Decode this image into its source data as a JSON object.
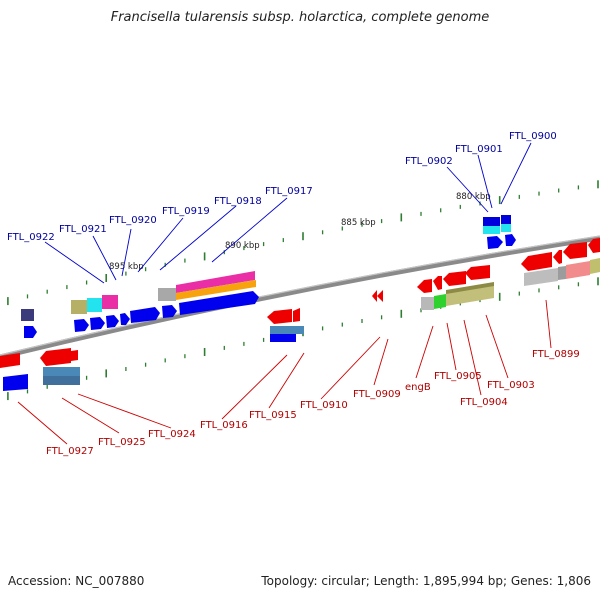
{
  "title": "Francisella tularensis subsp. holarctica, complete genome",
  "footer": {
    "accession": "Accession: NC_007880",
    "stats": "Topology: circular; Length: 1,895,994 bp; Genes: 1,806"
  },
  "scale_labels": [
    "880 kbp",
    "885 kbp",
    "890 kbp",
    "895 kbp"
  ],
  "gene_labels_forward": [
    "FTL_0922",
    "FTL_0921",
    "FTL_0920",
    "FTL_0919",
    "FTL_0918",
    "FTL_0917",
    "FTL_0902",
    "FTL_0901",
    "FTL_0900"
  ],
  "gene_labels_reverse": [
    "FTL_0927",
    "FTL_0925",
    "FTL_0924",
    "FTL_0916",
    "FTL_0915",
    "FTL_0910",
    "FTL_0909",
    "engB",
    "FTL_0905",
    "FTL_0904",
    "FTL_0903",
    "FTL_0899"
  ],
  "colors": {
    "forward_label": "#00009a",
    "reverse_label": "#b00000",
    "backbone": "#888888",
    "tick": "#2e7d32",
    "forward_gene": "#0000ee",
    "reverse_gene": "#ee0000"
  }
}
